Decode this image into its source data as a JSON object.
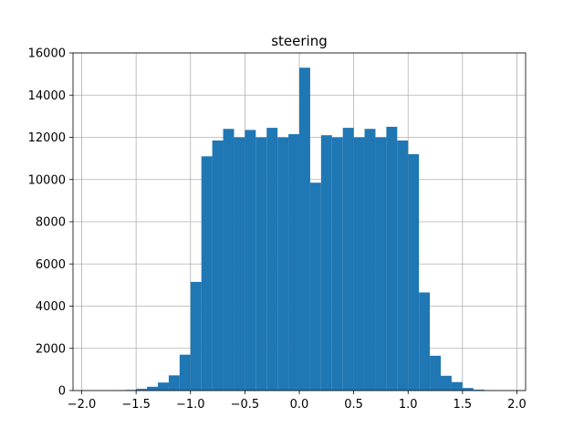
{
  "chart_data": {
    "type": "bar",
    "title": "steering",
    "xlabel": "",
    "ylabel": "",
    "xlim": [
      -2.08,
      2.08
    ],
    "ylim": [
      0,
      16000
    ],
    "grid": true,
    "bar_color": "#1f77b4",
    "grid_color": "#b0b0b0",
    "bin_width": 0.1,
    "x_ticks": [
      "-2.0",
      "-1.5",
      "-1.0",
      "-0.5",
      "0.0",
      "0.5",
      "1.0",
      "1.5",
      "2.0"
    ],
    "y_ticks": [
      "0",
      "2000",
      "4000",
      "6000",
      "8000",
      "10000",
      "12000",
      "14000",
      "16000"
    ],
    "bins": [
      {
        "x0": -1.7,
        "x1": -1.6,
        "count": 10
      },
      {
        "x0": -1.6,
        "x1": -1.5,
        "count": 30
      },
      {
        "x0": -1.5,
        "x1": -1.4,
        "count": 80
      },
      {
        "x0": -1.4,
        "x1": -1.3,
        "count": 180
      },
      {
        "x0": -1.3,
        "x1": -1.2,
        "count": 380
      },
      {
        "x0": -1.2,
        "x1": -1.1,
        "count": 720
      },
      {
        "x0": -1.1,
        "x1": -1.0,
        "count": 1700
      },
      {
        "x0": -1.0,
        "x1": -0.9,
        "count": 5150
      },
      {
        "x0": -0.9,
        "x1": -0.8,
        "count": 11100
      },
      {
        "x0": -0.8,
        "x1": -0.7,
        "count": 11850
      },
      {
        "x0": -0.7,
        "x1": -0.6,
        "count": 12400
      },
      {
        "x0": -0.6,
        "x1": -0.5,
        "count": 12000
      },
      {
        "x0": -0.5,
        "x1": -0.4,
        "count": 12350
      },
      {
        "x0": -0.4,
        "x1": -0.3,
        "count": 12000
      },
      {
        "x0": -0.3,
        "x1": -0.2,
        "count": 12450
      },
      {
        "x0": -0.2,
        "x1": -0.1,
        "count": 12000
      },
      {
        "x0": -0.1,
        "x1": 0.0,
        "count": 12150
      },
      {
        "x0": 0.0,
        "x1": 0.1,
        "count": 15300
      },
      {
        "x0": 0.1,
        "x1": 0.2,
        "count": 9850
      },
      {
        "x0": 0.2,
        "x1": 0.3,
        "count": 12100
      },
      {
        "x0": 0.3,
        "x1": 0.4,
        "count": 12000
      },
      {
        "x0": 0.4,
        "x1": 0.5,
        "count": 12450
      },
      {
        "x0": 0.5,
        "x1": 0.6,
        "count": 12000
      },
      {
        "x0": 0.6,
        "x1": 0.7,
        "count": 12400
      },
      {
        "x0": 0.7,
        "x1": 0.8,
        "count": 12000
      },
      {
        "x0": 0.8,
        "x1": 0.9,
        "count": 12500
      },
      {
        "x0": 0.9,
        "x1": 1.0,
        "count": 11850
      },
      {
        "x0": 1.0,
        "x1": 1.1,
        "count": 11200
      },
      {
        "x0": 1.1,
        "x1": 1.2,
        "count": 4650
      },
      {
        "x0": 1.2,
        "x1": 1.3,
        "count": 1650
      },
      {
        "x0": 1.3,
        "x1": 1.4,
        "count": 700
      },
      {
        "x0": 1.4,
        "x1": 1.5,
        "count": 400
      },
      {
        "x0": 1.5,
        "x1": 1.6,
        "count": 120
      },
      {
        "x0": 1.6,
        "x1": 1.7,
        "count": 40
      },
      {
        "x0": 1.7,
        "x1": 1.8,
        "count": 10
      }
    ]
  }
}
